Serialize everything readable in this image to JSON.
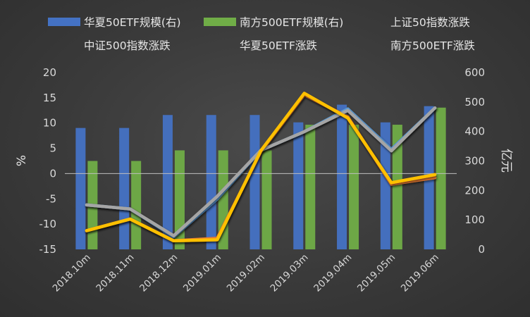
{
  "chart_data": {
    "type": "bar",
    "categories": [
      "2018.10m",
      "2018.11m",
      "2018.12m",
      "2019.01m",
      "2019.02m",
      "2019.03m",
      "2019.04m",
      "2019.05m",
      "2019.06m"
    ],
    "series": [
      {
        "name": "华夏50ETF规模(右)",
        "type": "bar",
        "axis": "right",
        "color": "#4472c4",
        "values": [
          412,
          412,
          456,
          456,
          456,
          431,
          491,
          431,
          486
        ]
      },
      {
        "name": "南方500ETF规模(右)",
        "type": "bar",
        "axis": "right",
        "color": "#70ad47",
        "values": [
          300,
          300,
          336,
          336,
          336,
          423,
          423,
          423,
          481
        ]
      },
      {
        "name": "上证50指数涨跌",
        "type": "line",
        "axis": "left",
        "color": "#5b9bd5",
        "values": [
          -6.2,
          -7.0,
          -12.5,
          -5.0,
          4.6,
          8.3,
          12.8,
          4.8,
          13.0
        ]
      },
      {
        "name": "中证500指数涨跌",
        "type": "line",
        "axis": "left",
        "color": "#ed7d31",
        "values": [
          -11.3,
          -9.0,
          -13.3,
          -12.8,
          4.3,
          15.6,
          11.2,
          -2.1,
          -0.8
        ]
      },
      {
        "name": "华夏50ETF涨跌",
        "type": "line",
        "axis": "left",
        "color": "#a5a5a5",
        "values": [
          -6.2,
          -7.0,
          -12.3,
          -4.5,
          4.6,
          8.3,
          12.5,
          4.5,
          13.0
        ]
      },
      {
        "name": "南方500ETF涨跌",
        "type": "line",
        "axis": "left",
        "color": "#ffc000",
        "values": [
          -11.3,
          -9.0,
          -13.3,
          -13.1,
          4.5,
          15.9,
          11.0,
          -1.8,
          -0.2
        ]
      }
    ],
    "left_axis": {
      "label": "%",
      "min": -15,
      "max": 20,
      "ticks": [
        -15,
        -10,
        -5,
        0,
        5,
        10,
        15,
        20
      ]
    },
    "right_axis": {
      "label": "亿元",
      "min": 0,
      "max": 600,
      "ticks": [
        0,
        100,
        200,
        300,
        400,
        500,
        600
      ]
    },
    "legend_position": "top",
    "grid": false,
    "title": ""
  }
}
